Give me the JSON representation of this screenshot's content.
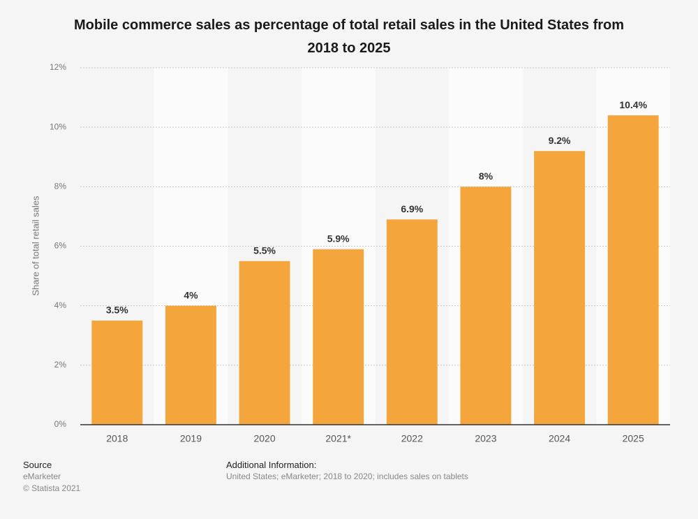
{
  "chart_data": {
    "type": "bar",
    "title": "Mobile commerce sales as percentage of total retail sales in the United States from 2018 to 2025",
    "y_label": "Share of total retail sales",
    "categories": [
      "2018",
      "2019",
      "2020",
      "2021*",
      "2022",
      "2023",
      "2024",
      "2025"
    ],
    "values": [
      3.5,
      4,
      5.5,
      5.9,
      6.9,
      8,
      9.2,
      10.4
    ],
    "value_labels": [
      "3.5%",
      "4%",
      "5.5%",
      "5.9%",
      "6.9%",
      "8%",
      "9.2%",
      "10.4%"
    ],
    "color": "#f4a53b",
    "ylim": [
      0,
      12
    ],
    "yticks": [
      {
        "value": 0,
        "label": "0%"
      },
      {
        "value": 2,
        "label": "2%"
      },
      {
        "value": 4,
        "label": "4%"
      },
      {
        "value": 6,
        "label": "6%"
      },
      {
        "value": 8,
        "label": "8%"
      },
      {
        "value": 10,
        "label": "10%"
      },
      {
        "value": 12,
        "label": "12%"
      }
    ],
    "grid": true
  },
  "footer": {
    "source_heading": "Source",
    "source": "eMarketer",
    "copyright": "© Statista 2021",
    "info_heading": "Additional Information:",
    "info": "United States; eMarketer; 2018 to 2020; includes sales on tablets"
  }
}
